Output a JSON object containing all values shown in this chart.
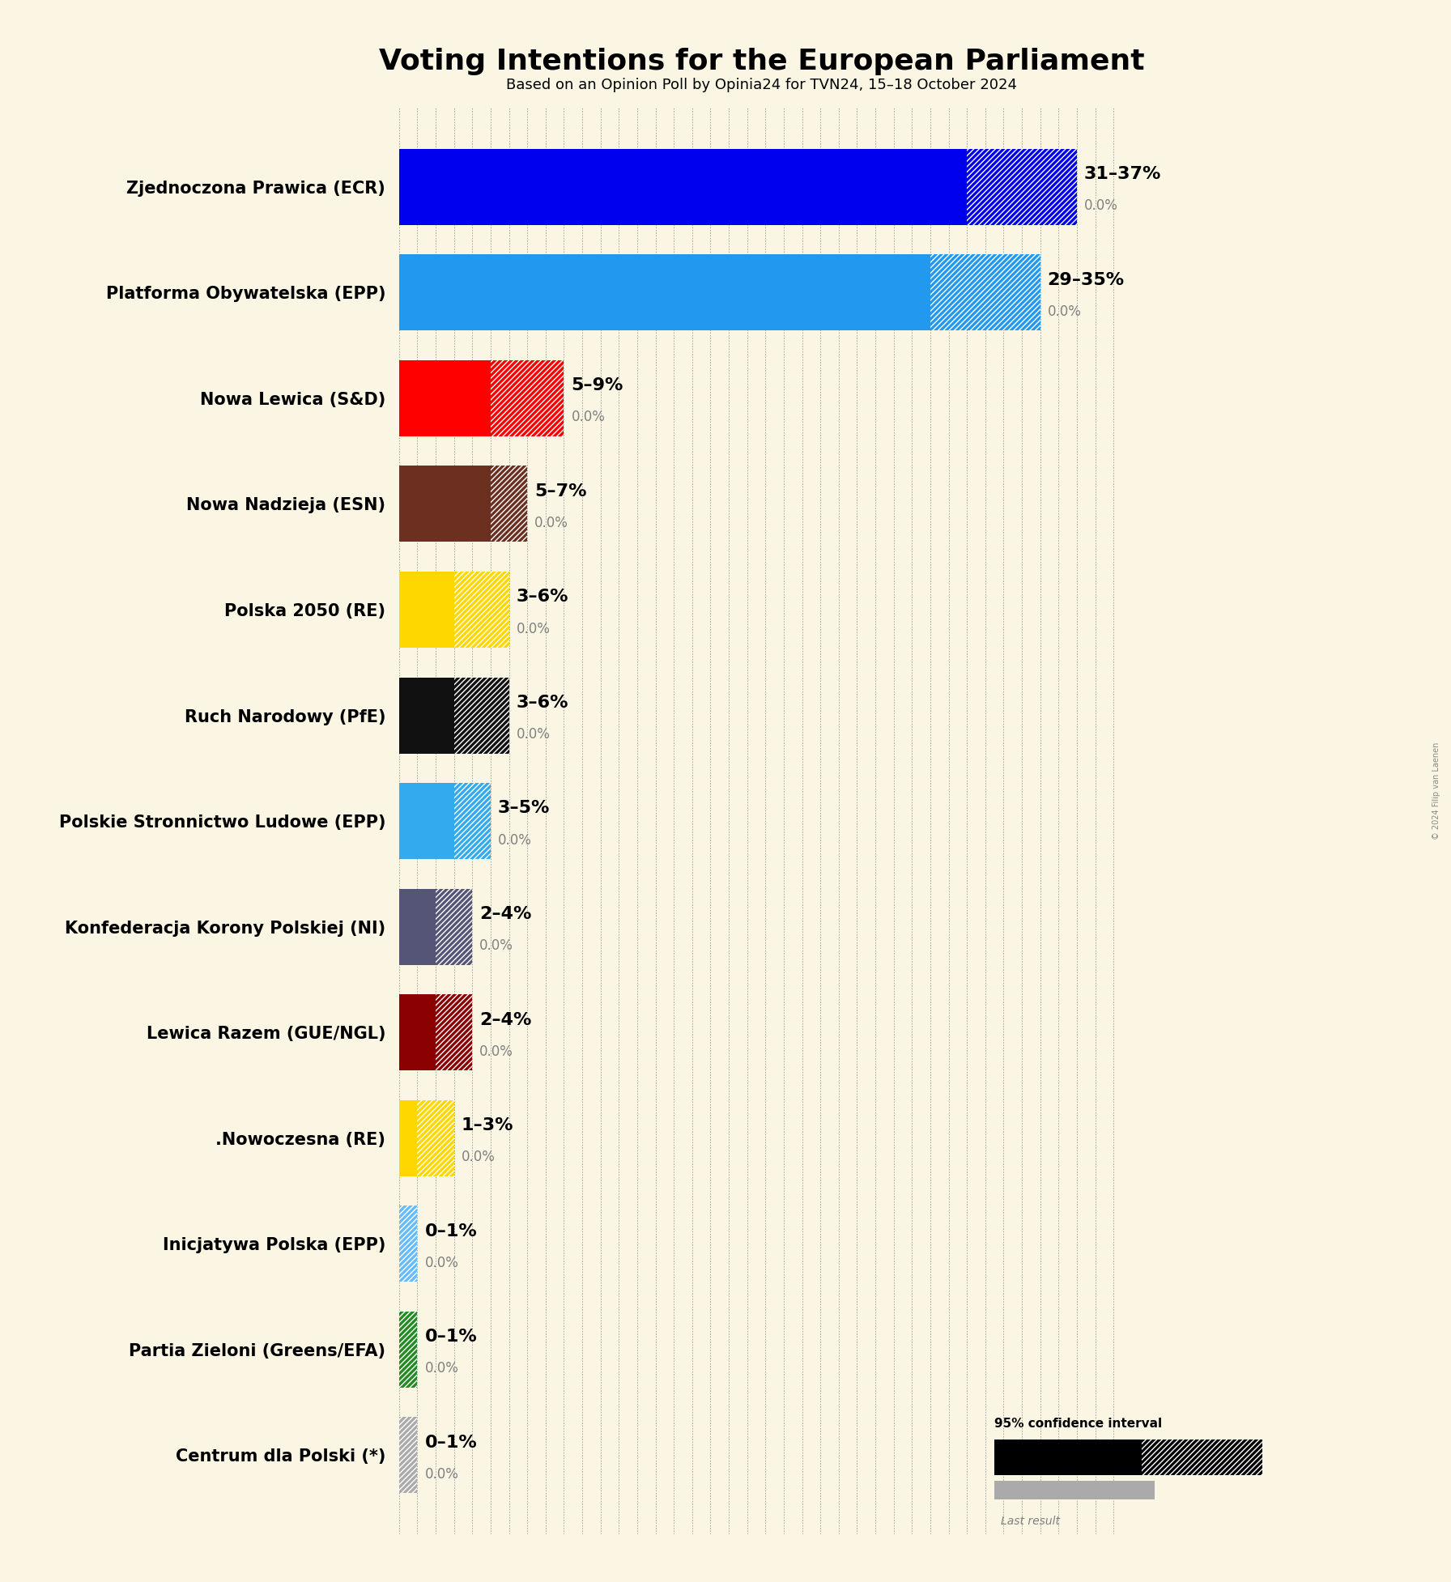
{
  "title": "Voting Intentions for the European Parliament",
  "subtitle": "Based on an Opinion Poll by Opinia24 for TVN24, 15–18 October 2024",
  "copyright": "© 2024 Filip van Laenen",
  "bg": "#faf6e3",
  "parties": [
    {
      "name": "Zjednoczona Prawica (ECR)",
      "low": 31,
      "high": 37,
      "color": "#0000EE",
      "last_color": "#888888"
    },
    {
      "name": "Platforma Obywatelska (EPP)",
      "low": 29,
      "high": 35,
      "color": "#2299EE",
      "last_color": "#888888"
    },
    {
      "name": "Nowa Lewica (S&D)",
      "low": 5,
      "high": 9,
      "color": "#FF0000",
      "last_color": "#888888"
    },
    {
      "name": "Nowa Nadzieja (ESN)",
      "low": 5,
      "high": 7,
      "color": "#6B3020",
      "last_color": "#888888"
    },
    {
      "name": "Polska 2050 (RE)",
      "low": 3,
      "high": 6,
      "color": "#FFD700",
      "last_color": "#888888"
    },
    {
      "name": "Ruch Narodowy (PfE)",
      "low": 3,
      "high": 6,
      "color": "#111111",
      "last_color": "#888888"
    },
    {
      "name": "Polskie Stronnictwo Ludowe (EPP)",
      "low": 3,
      "high": 5,
      "color": "#33AAEE",
      "last_color": "#888888"
    },
    {
      "name": "Konfederacja Korony Polskiej (NI)",
      "low": 2,
      "high": 4,
      "color": "#555577",
      "last_color": "#888888"
    },
    {
      "name": "Lewica Razem (GUE/NGL)",
      "low": 2,
      "high": 4,
      "color": "#8B0000",
      "last_color": "#888888"
    },
    {
      "name": ".Nowoczesna (RE)",
      "low": 1,
      "high": 3,
      "color": "#FFD700",
      "last_color": "#888888"
    },
    {
      "name": "Inicjatywa Polska (EPP)",
      "low": 0,
      "high": 1,
      "color": "#66BBFF",
      "last_color": "#888888"
    },
    {
      "name": "Partia Zieloni (Greens/EFA)",
      "low": 0,
      "high": 1,
      "color": "#228B22",
      "last_color": "#888888"
    },
    {
      "name": "Centrum dla Polski (*)",
      "low": 0,
      "high": 1,
      "color": "#AAAAAA",
      "last_color": "#888888"
    }
  ],
  "last_results": [
    0.0,
    0.0,
    0.0,
    0.0,
    0.0,
    0.0,
    0.0,
    0.0,
    0.0,
    0.0,
    0.0,
    0.0,
    0.0
  ],
  "xlim": 40,
  "bar_height": 0.72,
  "grid_color": "#999999",
  "title_fontsize": 26,
  "subtitle_fontsize": 13,
  "label_fontsize": 15,
  "range_fontsize": 16,
  "last_fontsize": 12
}
